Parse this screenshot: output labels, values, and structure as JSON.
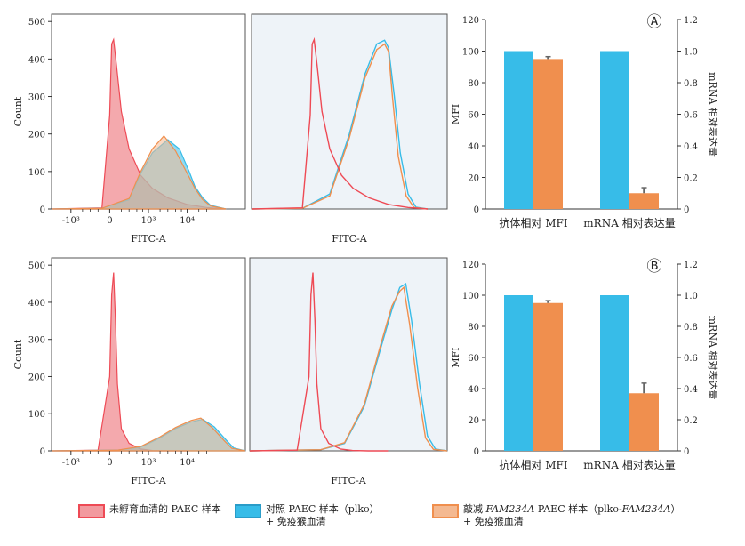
{
  "colors": {
    "red": "#EE4A55",
    "red_fill": "#F29A9F",
    "blue": "#37BCE8",
    "orange": "#F08F4E",
    "orange_fill": "#F4B991",
    "gray_bg": "#EEF3F8",
    "error": "#666666"
  },
  "chart_data": [
    {
      "type": "area",
      "panel": "A-histogram-overlay",
      "xlabel": "FITC-A",
      "ylabel": "Count",
      "xticks": [
        "-10³",
        "0",
        "10³",
        "10⁴"
      ],
      "yticks": [
        "0",
        "100",
        "200",
        "300",
        "400",
        "500"
      ],
      "ylim": [
        0,
        510
      ],
      "series": [
        {
          "color": "red",
          "x": [
            -1.5,
            -0.2,
            0,
            0.05,
            0.1,
            0.18,
            0.3,
            0.5,
            0.8,
            1.1,
            1.5,
            2.0,
            2.5,
            3.0
          ],
          "y": [
            0,
            3,
            250,
            440,
            452,
            380,
            260,
            160,
            90,
            55,
            30,
            12,
            4,
            0
          ]
        },
        {
          "color": "blue",
          "x": [
            -1.5,
            -0.2,
            0.5,
            0.8,
            1.1,
            1.5,
            1.8,
            2.05,
            2.2,
            2.4,
            2.6,
            3.0
          ],
          "y": [
            0,
            2,
            25,
            95,
            150,
            185,
            160,
            100,
            60,
            30,
            10,
            0
          ]
        },
        {
          "color": "orange",
          "x": [
            -1.5,
            -0.2,
            0.5,
            0.8,
            1.1,
            1.4,
            1.7,
            2.0,
            2.2,
            2.4,
            2.6,
            3.0
          ],
          "y": [
            0,
            2,
            28,
            100,
            160,
            195,
            155,
            95,
            55,
            25,
            8,
            0
          ]
        }
      ]
    },
    {
      "type": "line",
      "panel": "A-histogram-outline",
      "xlabel": "FITC-A",
      "ylim": [
        0,
        510
      ],
      "series": [
        {
          "color": "red",
          "x": [
            -1.5,
            -0.2,
            0,
            0.05,
            0.1,
            0.18,
            0.3,
            0.5,
            0.8,
            1.1,
            1.5,
            2.0,
            2.5,
            3.0
          ],
          "y": [
            0,
            3,
            250,
            440,
            452,
            380,
            260,
            160,
            90,
            55,
            30,
            12,
            4,
            0
          ]
        },
        {
          "color": "blue",
          "x": [
            -1.5,
            -0.2,
            0.5,
            1.0,
            1.4,
            1.7,
            1.9,
            2.0,
            2.15,
            2.3,
            2.5,
            2.7,
            3.0
          ],
          "y": [
            0,
            2,
            40,
            200,
            360,
            440,
            450,
            430,
            300,
            150,
            40,
            5,
            0
          ]
        },
        {
          "color": "orange",
          "x": [
            -1.5,
            -0.2,
            0.5,
            1.0,
            1.4,
            1.7,
            1.9,
            2.0,
            2.1,
            2.25,
            2.45,
            2.65,
            3.0
          ],
          "y": [
            0,
            2,
            35,
            190,
            350,
            425,
            440,
            420,
            300,
            140,
            35,
            4,
            0
          ]
        }
      ]
    },
    {
      "type": "bar",
      "panel": "A",
      "label": "Ⓐ",
      "categories": [
        "抗体相对 MFI",
        "mRNA 相对表达量"
      ],
      "ylabel": "MFI",
      "ylabel_right": "mRNA 相对表达量",
      "ylim": [
        0,
        120
      ],
      "ylim_right": [
        0,
        1.2
      ],
      "yticks": [
        "0",
        "20",
        "40",
        "60",
        "80",
        "100",
        "120"
      ],
      "yticks_right": [
        "0",
        "0.2",
        "0.4",
        "0.6",
        "0.8",
        "1.0",
        "1.2"
      ],
      "series": [
        {
          "color": "blue",
          "values": [
            100,
            100
          ],
          "errors": [
            0,
            0
          ]
        },
        {
          "color": "orange",
          "values": [
            95,
            10
          ],
          "errors": [
            1.5,
            3.5
          ]
        }
      ]
    },
    {
      "type": "area",
      "panel": "B-histogram-overlay",
      "xlabel": "FITC-A",
      "ylabel": "Count",
      "xticks": [
        "-10³",
        "0",
        "10³",
        "10⁴"
      ],
      "yticks": [
        "0",
        "100",
        "200",
        "300",
        "400",
        "500"
      ],
      "ylim": [
        0,
        510
      ],
      "series": [
        {
          "color": "red",
          "x": [
            -1.5,
            -0.3,
            0,
            0.05,
            0.1,
            0.15,
            0.2,
            0.3,
            0.5,
            0.8,
            1.1,
            1.5,
            2.0
          ],
          "y": [
            0,
            2,
            200,
            420,
            480,
            350,
            180,
            60,
            20,
            5,
            1,
            0,
            0
          ]
        },
        {
          "color": "blue",
          "x": [
            -1.5,
            0.2,
            0.8,
            1.3,
            1.7,
            2.1,
            2.4,
            2.7,
            3.0,
            3.2,
            3.5
          ],
          "y": [
            0,
            2,
            10,
            35,
            60,
            78,
            85,
            65,
            30,
            8,
            0
          ]
        },
        {
          "color": "orange",
          "x": [
            -1.5,
            0.2,
            0.8,
            1.3,
            1.7,
            2.1,
            2.35,
            2.65,
            2.95,
            3.15,
            3.5
          ],
          "y": [
            0,
            2,
            12,
            38,
            63,
            82,
            88,
            62,
            28,
            7,
            0
          ]
        }
      ]
    },
    {
      "type": "line",
      "panel": "B-histogram-outline",
      "xlabel": "FITC-A",
      "ylim": [
        0,
        510
      ],
      "series": [
        {
          "color": "red",
          "x": [
            -1.5,
            -0.3,
            0,
            0.05,
            0.1,
            0.15,
            0.2,
            0.3,
            0.5,
            0.8,
            1.1,
            1.5,
            2.0
          ],
          "y": [
            0,
            2,
            200,
            420,
            480,
            350,
            180,
            60,
            20,
            5,
            1,
            0,
            0
          ]
        },
        {
          "color": "blue",
          "x": [
            -1.5,
            0.3,
            0.9,
            1.4,
            1.8,
            2.1,
            2.3,
            2.45,
            2.6,
            2.8,
            3.0,
            3.2,
            3.5
          ],
          "y": [
            0,
            3,
            20,
            120,
            270,
            380,
            440,
            450,
            350,
            180,
            40,
            5,
            0
          ]
        },
        {
          "color": "orange",
          "x": [
            -1.5,
            0.3,
            0.9,
            1.4,
            1.8,
            2.1,
            2.3,
            2.4,
            2.55,
            2.75,
            2.95,
            3.15,
            3.5
          ],
          "y": [
            0,
            3,
            22,
            125,
            280,
            390,
            430,
            440,
            340,
            170,
            35,
            4,
            0
          ]
        }
      ]
    },
    {
      "type": "bar",
      "panel": "B",
      "label": "Ⓑ",
      "categories": [
        "抗体相对 MFI",
        "mRNA 相对表达量"
      ],
      "ylabel": "MFI",
      "ylabel_right": "mRNA 相对表达量",
      "ylim": [
        0,
        120
      ],
      "ylim_right": [
        0,
        1.2
      ],
      "yticks": [
        "0",
        "20",
        "40",
        "60",
        "80",
        "100",
        "120"
      ],
      "yticks_right": [
        "0",
        "0.2",
        "0.4",
        "0.6",
        "0.8",
        "1.0",
        "1.2"
      ],
      "series": [
        {
          "color": "blue",
          "values": [
            100,
            100
          ],
          "errors": [
            0,
            0
          ]
        },
        {
          "color": "orange",
          "values": [
            95,
            37
          ],
          "errors": [
            1.5,
            6.5
          ]
        }
      ]
    }
  ],
  "legend": {
    "item1": "未孵育血清的 PAEC 样本",
    "item2_line1": "对照 PAEC 样本（plko）",
    "item2_line2": "+ 免疫猴血清",
    "item3_pre": "敲减 ",
    "item3_gene": "FAM234A",
    "item3_mid": " PAEC 样本（plko-",
    "item3_gene2": "FAM234A",
    "item3_post": "）",
    "item3_line2": "+ 免疫猴血清"
  }
}
